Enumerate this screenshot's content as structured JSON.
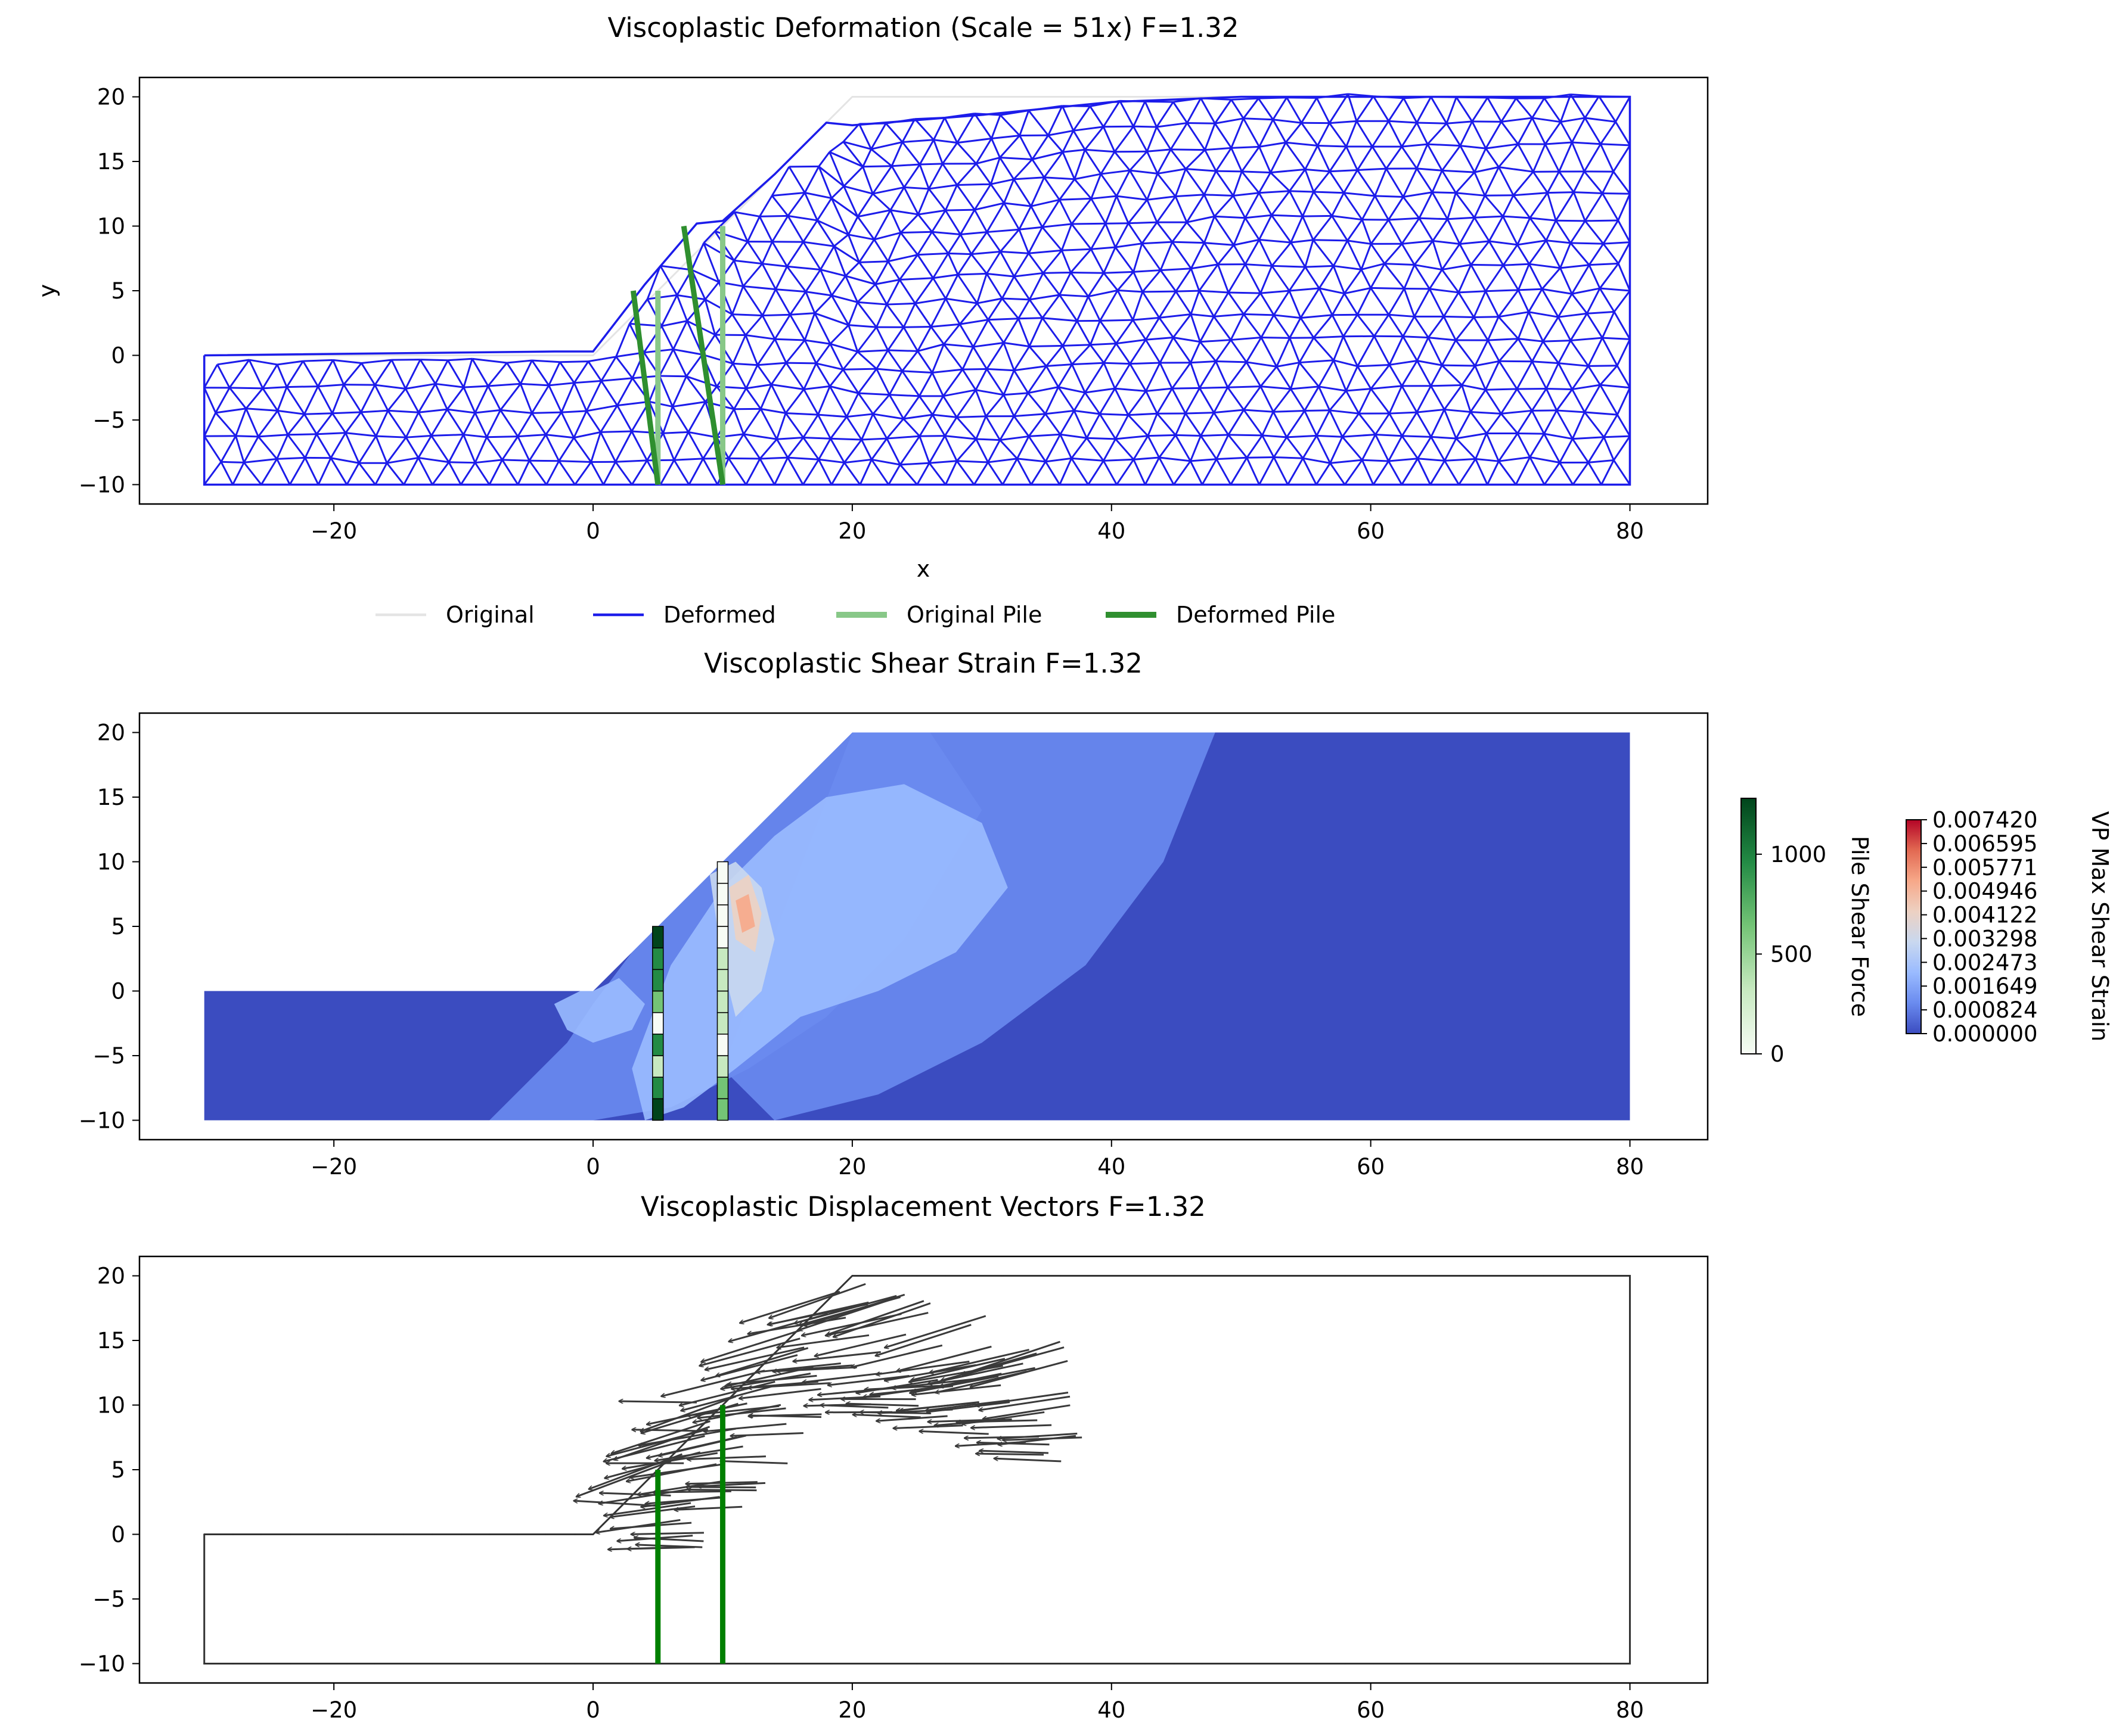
{
  "chart_data": [
    {
      "type": "line",
      "title": "Viscoplastic Deformation (Scale = 51x)  F=1.32",
      "xlabel": "x",
      "ylabel": "y",
      "xlim": [
        -35,
        86
      ],
      "ylim": [
        -11.5,
        21.5
      ],
      "xticks": [
        -20,
        0,
        20,
        40,
        60,
        80
      ],
      "yticks": [
        -10,
        -5,
        0,
        5,
        10,
        15,
        20
      ],
      "grid": false,
      "legend_position": "bottom-center",
      "series": [
        {
          "name": "Original",
          "color": "#e4e4e4",
          "x": [
            -30,
            0,
            20,
            80,
            80,
            -30,
            -30
          ],
          "y": [
            0,
            0,
            20,
            20,
            -10,
            -10,
            0
          ]
        },
        {
          "name": "Deformed",
          "color": "#1c1cea",
          "x": [
            -30,
            -3,
            0,
            4,
            8,
            10,
            14,
            18,
            20,
            30,
            40,
            50,
            60,
            80,
            80,
            -30,
            -30
          ],
          "y": [
            0,
            0.3,
            0.3,
            5.5,
            10.2,
            10.4,
            14,
            18,
            17.8,
            18.6,
            19.6,
            20,
            20,
            20,
            -10,
            -10,
            0
          ]
        },
        {
          "name": "Original Pile",
          "color": "#88c888",
          "piles": [
            {
              "x": [
                5,
                5
              ],
              "y": [
                -10,
                5
              ]
            },
            {
              "x": [
                10,
                10
              ],
              "y": [
                -10,
                10
              ]
            }
          ]
        },
        {
          "name": "Deformed Pile",
          "color": "#2f8f2f",
          "piles": [
            {
              "x": [
                5,
                3.1
              ],
              "y": [
                -10,
                5
              ]
            },
            {
              "x": [
                10,
                7
              ],
              "y": [
                -10,
                10
              ]
            }
          ]
        }
      ]
    },
    {
      "type": "heatmap",
      "title": "Viscoplastic Shear Strain  F=1.32",
      "xlim": [
        -35,
        86
      ],
      "ylim": [
        -11.5,
        21.5
      ],
      "xticks": [
        -20,
        0,
        20,
        40,
        60,
        80
      ],
      "yticks": [
        -10,
        -5,
        0,
        5,
        10,
        15,
        20
      ],
      "domain": {
        "x": [
          -30,
          0,
          20,
          80,
          80,
          -30
        ],
        "y": [
          0,
          0,
          20,
          20,
          -10,
          -10
        ]
      },
      "piles": [
        {
          "x": 5,
          "y": [
            -10,
            5
          ],
          "shear_force": [
            1250,
            900,
            300,
            1050,
            80,
            650,
            1100,
            900,
            1150
          ]
        },
        {
          "x": 10,
          "y": [
            -10,
            10
          ],
          "shear_force": [
            600,
            500,
            200,
            150,
            180,
            250,
            300,
            450,
            100,
            80,
            50,
            20
          ]
        }
      ],
      "colorbars": [
        {
          "label": "Pile Shear Force",
          "min": 0,
          "max": 1280,
          "ticks": [
            "0",
            "500",
            "1000"
          ],
          "colors": [
            "#f7fcf5",
            "#c7e9c0",
            "#74c476",
            "#238b45",
            "#00441b"
          ]
        },
        {
          "label": "VP Max Shear Strain",
          "min": 0,
          "max": 0.00742,
          "ticks": [
            "0.000000",
            "0.000824",
            "0.001649",
            "0.002473",
            "0.003298",
            "0.004122",
            "0.004946",
            "0.005771",
            "0.006595",
            "0.007420"
          ],
          "colors": [
            "#3b4cc0",
            "#6a8bef",
            "#9abbff",
            "#c9d8ef",
            "#edd1c2",
            "#f7a889",
            "#e26952",
            "#b40426"
          ]
        }
      ]
    },
    {
      "type": "scatter",
      "title": "Viscoplastic Displacement Vectors  F=1.32",
      "xlim": [
        -35,
        86
      ],
      "ylim": [
        -11.5,
        21.5
      ],
      "xticks": [
        -20,
        0,
        20,
        40,
        60,
        80
      ],
      "yticks": [
        -10,
        -5,
        0,
        5,
        10,
        15,
        20
      ],
      "boundary": {
        "x": [
          -30,
          0,
          20,
          80,
          80,
          -30,
          -30
        ],
        "y": [
          0,
          0,
          20,
          20,
          -10,
          -10,
          0
        ]
      },
      "piles": [
        {
          "x": [
            5,
            5
          ],
          "y": [
            -10,
            5
          ]
        },
        {
          "x": [
            10,
            10
          ],
          "y": [
            -10,
            10
          ]
        }
      ],
      "arrow_color": "#3a3a3a",
      "pile_color": "#008000"
    }
  ],
  "ticklabels_x": [
    "−20",
    "0",
    "20",
    "40",
    "60",
    "80"
  ],
  "ticklabels_y": [
    "−10",
    "−5",
    "0",
    "5",
    "10",
    "15",
    "20"
  ]
}
